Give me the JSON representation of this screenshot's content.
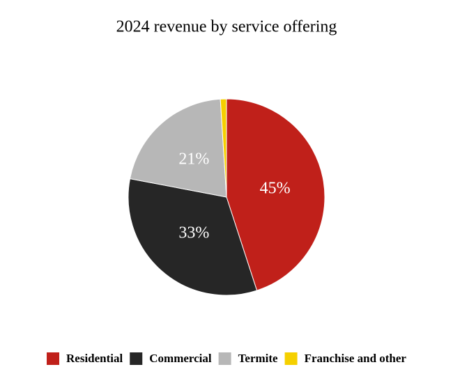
{
  "chart_data": {
    "type": "pie",
    "title": "2024 revenue by service offering",
    "categories": [
      "Residential",
      "Commercial",
      "Termite",
      "Franchise and other"
    ],
    "values": [
      45,
      33,
      21,
      1
    ],
    "value_labels": [
      "45%",
      "33%",
      "21%",
      null
    ],
    "colors": [
      "#c0201a",
      "#262626",
      "#b7b7b7",
      "#f5d000"
    ],
    "legend": "bottom"
  }
}
